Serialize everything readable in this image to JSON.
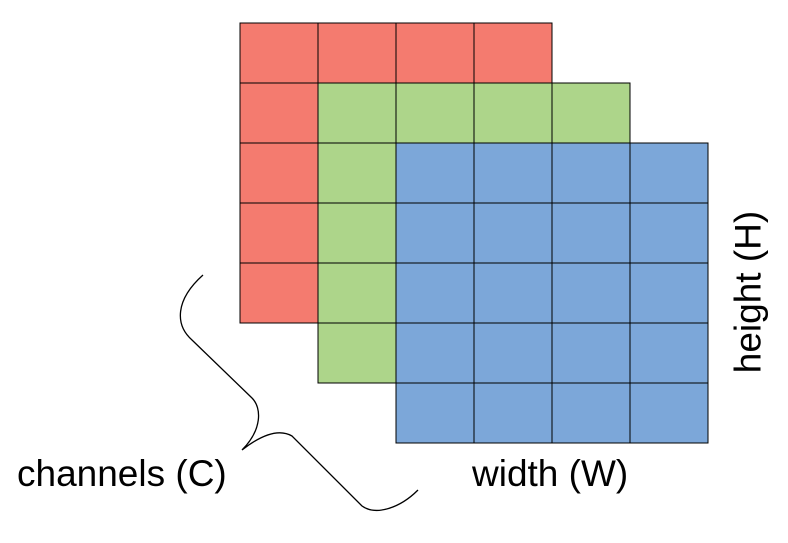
{
  "labels": {
    "channels": "channels (C)",
    "width": "width (W)",
    "height": "height (H)"
  },
  "grids": [
    {
      "name": "red-channel",
      "color": "#f47b6f",
      "cols": 4,
      "rows": 5
    },
    {
      "name": "green-channel",
      "color": "#add58a",
      "cols": 4,
      "rows": 5
    },
    {
      "name": "blue-channel",
      "color": "#7ca7d9",
      "cols": 4,
      "rows": 5
    }
  ],
  "line_color": "#000000"
}
